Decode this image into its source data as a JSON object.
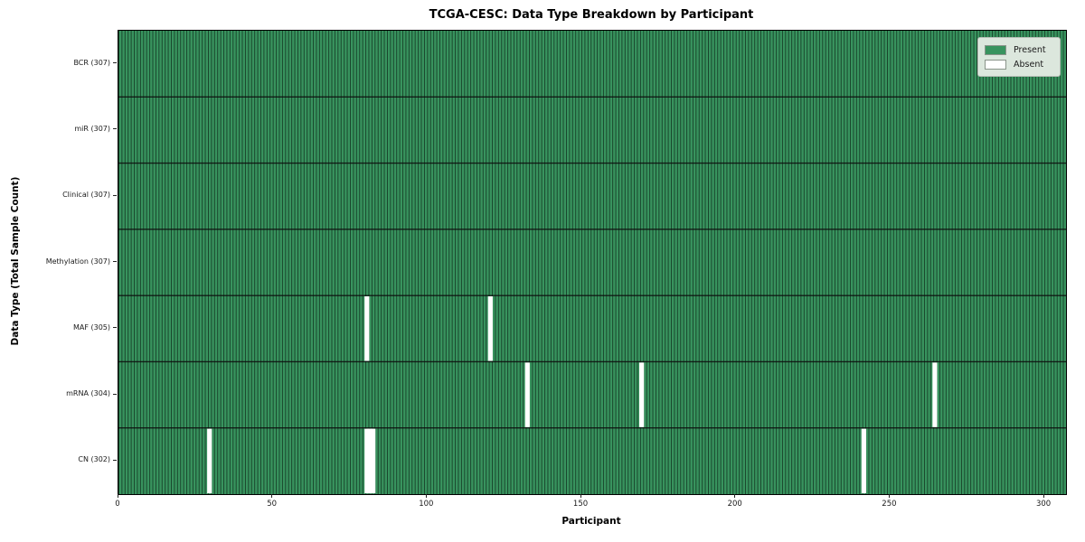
{
  "figure": {
    "title": "TCGA-CESC: Data Type Breakdown by Participant",
    "xlabel": "Participant",
    "ylabel": "Data Type (Total Sample Count)"
  },
  "legend": {
    "items": [
      {
        "label": "Present",
        "color": "#2e8b57"
      },
      {
        "label": "Absent",
        "color": "#ffffff"
      }
    ],
    "position": "upper right"
  },
  "chart_data": {
    "type": "heatmap",
    "title": "TCGA-CESC: Data Type Breakdown by Participant",
    "xlabel": "Participant",
    "ylabel": "Data Type (Total Sample Count)",
    "x_ticks": [
      0,
      50,
      100,
      150,
      200,
      250,
      300
    ],
    "x_range": [
      0,
      307
    ],
    "n_participants": 307,
    "grid": "cell-edges-on",
    "legend_position": "upper right",
    "rows": [
      {
        "label": "BCR (307)",
        "data_type": "BCR",
        "total": 307,
        "absent_participants": []
      },
      {
        "label": "miR (307)",
        "data_type": "miR",
        "total": 307,
        "absent_participants": []
      },
      {
        "label": "Clinical (307)",
        "data_type": "Clinical",
        "total": 307,
        "absent_participants": []
      },
      {
        "label": "Methylation (307)",
        "data_type": "Methylation",
        "total": 307,
        "absent_participants": []
      },
      {
        "label": "MAF (305)",
        "data_type": "MAF",
        "total": 305,
        "absent_participants": [
          80,
          120
        ]
      },
      {
        "label": "mRNA (304)",
        "data_type": "mRNA",
        "total": 304,
        "absent_participants": [
          132,
          169,
          264
        ]
      },
      {
        "label": "CN (302)",
        "data_type": "CN",
        "total": 302,
        "absent_participants": [
          29,
          80,
          81,
          82,
          241
        ]
      }
    ],
    "colors": {
      "present": "#38935e",
      "absent": "#ffffff",
      "cell_edge": "#10301e",
      "row_separator": "#0d0d0d",
      "plot_border": "#000000",
      "legend_bg": "#dce7dd",
      "tick_text": "#1a1a1a"
    }
  }
}
